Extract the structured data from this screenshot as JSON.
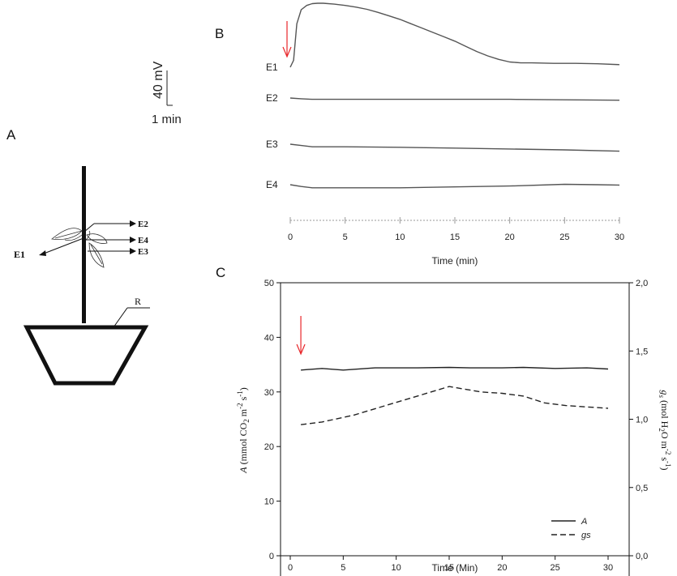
{
  "panels": {
    "a": "A",
    "b": "B",
    "c": "C"
  },
  "scale_bar": {
    "vertical": "40 mV",
    "horizontal": "1 min"
  },
  "diagram": {
    "electrodes": [
      "E1",
      "E2",
      "E4",
      "E3"
    ],
    "reference": "R"
  },
  "colors": {
    "trace": "#555555",
    "arrow": "#e8262a",
    "line": "#222222"
  },
  "chart_data": [
    {
      "type": "line",
      "panel": "B",
      "xlabel": "Time (min)",
      "x_ticks": [
        0,
        5,
        10,
        15,
        20,
        25,
        30
      ],
      "xlim": [
        0,
        30
      ],
      "stimulus_time": 0,
      "series": [
        {
          "name": "E1",
          "x": [
            0,
            0.3,
            0.6,
            1,
            1.5,
            2,
            2.5,
            3,
            4,
            5,
            6,
            7,
            8,
            9,
            10,
            11,
            12,
            13,
            14,
            15,
            16,
            17,
            18,
            19,
            20,
            21,
            22,
            24,
            26,
            28,
            30
          ],
          "y": [
            0,
            8,
            50,
            66,
            71,
            73,
            73.5,
            73.5,
            72.5,
            71,
            69,
            66.5,
            63,
            59,
            55,
            50,
            45,
            40,
            35,
            30,
            24,
            18,
            13,
            9,
            6,
            5,
            5,
            4.5,
            4.5,
            4,
            3
          ]
        },
        {
          "name": "E2",
          "x": [
            0,
            1,
            2,
            5,
            10,
            15,
            20,
            25,
            30
          ],
          "y": [
            0,
            -0.8,
            -1.5,
            -1.5,
            -1.5,
            -1.5,
            -1.5,
            -2,
            -2.5
          ]
        },
        {
          "name": "E3",
          "x": [
            0,
            1,
            2,
            5,
            10,
            15,
            20,
            25,
            30
          ],
          "y": [
            0,
            -1.5,
            -3,
            -3,
            -3.5,
            -4.5,
            -5.5,
            -6.5,
            -8
          ]
        },
        {
          "name": "E4",
          "x": [
            0,
            1,
            2,
            5,
            10,
            15,
            20,
            25,
            28,
            30
          ],
          "y": [
            0,
            -2,
            -3.5,
            -3.5,
            -3.5,
            -2.5,
            -1.5,
            0.5,
            0,
            -0.5
          ]
        }
      ]
    },
    {
      "type": "line",
      "panel": "C",
      "xlabel": "Time (Min)",
      "ylabel": "A (mmol CO2 m-2 s-1)",
      "y2label": "gs (mol H2O m-2 s-1)",
      "xlim": [
        0,
        30
      ],
      "ylim": [
        0,
        50
      ],
      "y2lim": [
        0,
        2
      ],
      "x_ticks": [
        0,
        5,
        10,
        15,
        20,
        25,
        30
      ],
      "y_ticks": [
        0,
        10,
        20,
        30,
        40,
        50
      ],
      "y2_ticks": [
        "0,0",
        "0,5",
        "1,0",
        "1,5",
        "2,0"
      ],
      "stimulus_time": 1,
      "legend": "bottom-right",
      "series": [
        {
          "name": "A",
          "axis": "left",
          "style": "solid",
          "x": [
            1,
            3,
            5,
            8,
            10,
            12,
            15,
            17,
            20,
            22,
            25,
            28,
            30
          ],
          "y": [
            34,
            34.3,
            34,
            34.4,
            34.4,
            34.4,
            34.5,
            34.4,
            34.4,
            34.5,
            34.3,
            34.4,
            34.2
          ]
        },
        {
          "name": "gs",
          "axis": "right",
          "style": "dashed",
          "x": [
            1,
            3,
            6,
            9,
            12,
            15,
            18,
            20,
            22,
            24,
            26,
            28,
            30
          ],
          "y": [
            0.96,
            0.98,
            1.03,
            1.1,
            1.17,
            1.24,
            1.2,
            1.19,
            1.17,
            1.12,
            1.1,
            1.09,
            1.08
          ]
        }
      ]
    }
  ]
}
